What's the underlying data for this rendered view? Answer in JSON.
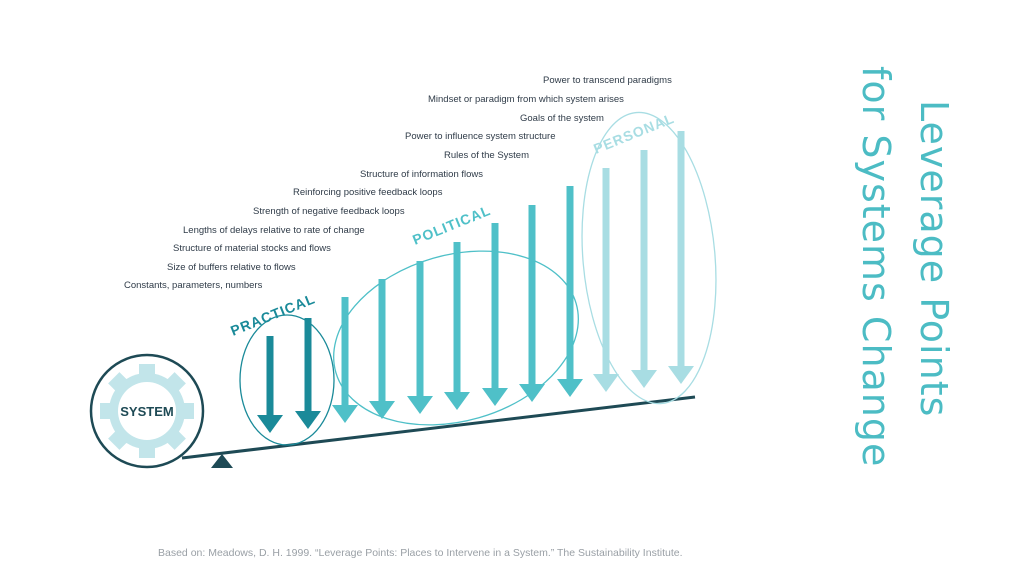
{
  "title_lines": [
    "Leverage Points",
    "for Systems Change"
  ],
  "system_label": "SYSTEM",
  "groups": {
    "practical": "PRACTICAL",
    "political": "POLITICAL",
    "personal": "PERSONAL"
  },
  "leverage_points": [
    "Constants, parameters, numbers",
    "Size of buffers relative to flows",
    "Structure of material stocks and flows",
    "Lengths of delays relative to rate of change",
    "Strength of negative feedback loops",
    "Reinforcing positive feedback loops",
    "Structure of information flows",
    "Rules of the System",
    "Power to influence system structure",
    "Goals of the system",
    "Mindset or paradigm from which system arises",
    "Power to transcend paradigms"
  ],
  "citation": "Based on: Meadows, D. H. 1999. “Leverage Points: Places to Intervene in a System.” The Sustainability Institute.",
  "colors": {
    "dark_teal": "#1a8a99",
    "mid_teal": "#4fc0c8",
    "light_teal": "#a8dde3",
    "gear_fill": "#c2e5ea",
    "outline": "#1e4a55",
    "title": "#4cbcc4"
  }
}
